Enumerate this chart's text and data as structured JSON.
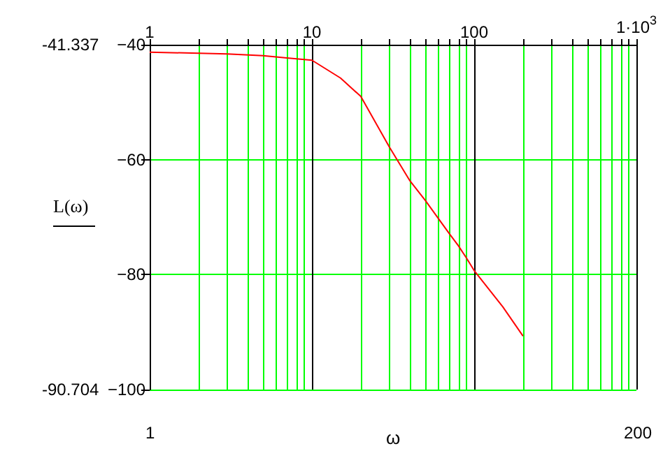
{
  "chart_data": {
    "type": "line",
    "xlabel": "ω",
    "ylabel": "L(ω)",
    "x": [
      1,
      3,
      5,
      7,
      10,
      15,
      20,
      30,
      40,
      50,
      60,
      70,
      80,
      90,
      100,
      150,
      200
    ],
    "series": [
      {
        "color": "#ff0000",
        "values": [
          -41.3,
          -41.6,
          -41.9,
          -42.3,
          -42.7,
          -45.8,
          -49.0,
          -57.8,
          -63.6,
          -67.1,
          -70.2,
          -72.8,
          -75.0,
          -77.2,
          -79.3,
          -85.6,
          -90.7
        ]
      }
    ],
    "log": "x",
    "xlim": [
      1,
      1000
    ],
    "xticks": [
      1,
      10,
      100,
      {
        "value": 1000,
        "label": "1·10$^{3}$"
      }
    ],
    "ylim": [
      -100,
      -40
    ],
    "yticks": [
      -40,
      -60,
      -80,
      -100
    ],
    "grid": true,
    "marker": "none",
    "line_style": "solid",
    "annotations": [
      "-41.337",
      "-90.704",
      "1",
      "200"
    ]
  }
}
